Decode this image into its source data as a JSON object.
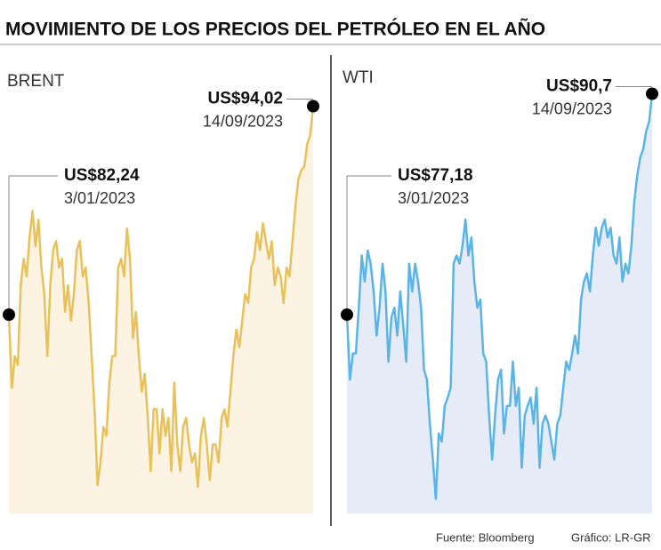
{
  "title": "MOVIMIENTO DE LOS PRECIOS DEL PETRÓLEO EN EL AÑO",
  "source": "Fuente: Bloomberg",
  "credit": "Gráfico: LR-GR",
  "chart_data": [
    {
      "type": "area",
      "title": "BRENT",
      "color": "#e8c15a",
      "fill": "#fdf3e3",
      "ylim": [
        71,
        95
      ],
      "values": [
        82.24,
        78.1,
        79.9,
        79.4,
        83.9,
        85.4,
        84.4,
        86.6,
        88.1,
        86.1,
        87.6,
        84.9,
        83.4,
        79.9,
        83.9,
        85.9,
        86.4,
        84.9,
        85.4,
        82.4,
        83.9,
        81.9,
        83.4,
        85.9,
        86.4,
        84.4,
        84.9,
        82.9,
        79.9,
        76.9,
        72.6,
        73.9,
        75.9,
        75.4,
        78.4,
        79.9,
        79.9,
        84.9,
        85.4,
        84.4,
        87.1,
        85.4,
        80.9,
        82.4,
        79.9,
        77.9,
        78.9,
        76.4,
        73.4,
        76.9,
        76.9,
        74.4,
        76.9,
        75.4,
        76.4,
        73.4,
        78.4,
        74.9,
        73.4,
        75.9,
        76.4,
        74.9,
        73.9,
        74.4,
        72.5,
        75.4,
        76.4,
        74.9,
        72.9,
        74.9,
        74.9,
        73.9,
        76.4,
        76.9,
        75.9,
        77.9,
        79.9,
        81.4,
        80.4,
        81.9,
        83.4,
        82.9,
        84.9,
        85.4,
        86.9,
        85.9,
        87.4,
        86.4,
        85.4,
        86.4,
        83.9,
        84.9,
        84.4,
        82.9,
        84.9,
        84.4,
        86.4,
        88.4,
        89.9,
        90.4,
        90.6,
        91.9,
        92.4,
        94.02
      ],
      "annotations": [
        {
          "value": 82.24,
          "label": "US$82,24",
          "date": "3/01/2023"
        },
        {
          "value": 94.02,
          "label": "US$94,02",
          "date": "14/09/2023"
        }
      ]
    },
    {
      "type": "area",
      "title": "WTI",
      "color": "#5ab4e5",
      "fill": "#e6ecf7",
      "ylim": [
        65,
        91
      ],
      "values": [
        77.18,
        73.2,
        74.8,
        74.8,
        77.6,
        80.8,
        79.2,
        81.1,
        80.3,
        78.6,
        75.9,
        77.6,
        80.3,
        78.6,
        74.3,
        77.0,
        77.6,
        75.9,
        78.6,
        76.5,
        74.3,
        80.3,
        78.6,
        80.3,
        79.2,
        77.6,
        73.8,
        73.2,
        70.5,
        68.3,
        65.9,
        69.9,
        69.4,
        71.6,
        72.1,
        72.7,
        80.3,
        80.8,
        80.3,
        81.4,
        83.0,
        80.8,
        81.9,
        79.2,
        77.6,
        78.1,
        74.8,
        74.3,
        71.0,
        68.3,
        71.0,
        73.2,
        73.8,
        69.9,
        71.6,
        71.6,
        74.3,
        71.6,
        72.7,
        67.8,
        71.0,
        71.6,
        72.1,
        70.5,
        72.7,
        67.8,
        70.5,
        71.0,
        70.5,
        69.4,
        68.3,
        70.5,
        71.0,
        72.7,
        74.3,
        73.8,
        74.8,
        75.9,
        74.8,
        78.1,
        79.2,
        79.7,
        78.6,
        80.8,
        82.5,
        81.4,
        82.5,
        83.0,
        81.9,
        82.5,
        80.8,
        80.3,
        81.9,
        79.2,
        80.3,
        79.7,
        81.4,
        84.1,
        85.7,
        86.8,
        87.3,
        88.4,
        89.0,
        90.7
      ],
      "annotations": [
        {
          "value": 77.18,
          "label": "US$77,18",
          "date": "3/01/2023"
        },
        {
          "value": 90.7,
          "label": "US$90,7",
          "date": "14/09/2023"
        }
      ]
    }
  ]
}
